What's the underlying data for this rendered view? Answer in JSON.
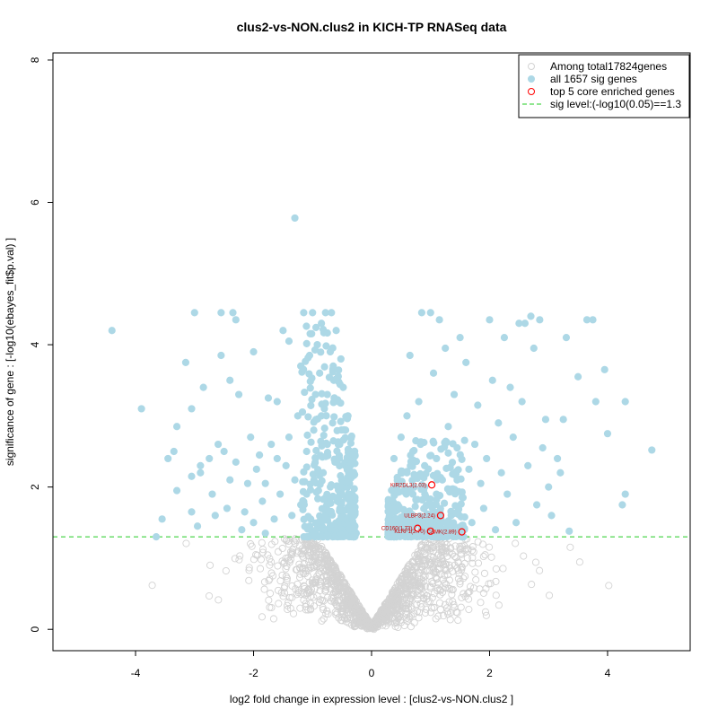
{
  "chart_data": {
    "type": "scatter",
    "title": "clus2-vs-NON.clus2 in KICH-TP RNASeq data",
    "xlabel": "log2 fold change in expression level : [clus2-vs-NON.clus2 ]",
    "ylabel": "significance of gene : [-log10(ebayes_fit$p.val) ]",
    "xlim": [
      -5.4,
      5.4
    ],
    "ylim": [
      -0.3,
      8.1
    ],
    "xticks": [
      -4,
      -2,
      0,
      2,
      4
    ],
    "yticks": [
      0,
      2,
      4,
      6,
      8
    ],
    "sig_threshold": 1.3,
    "legend_position": "top-right",
    "legend": [
      {
        "label": "Among total17824genes",
        "symbol": "open-circle",
        "color": "#d3d3d3"
      },
      {
        "label": "all 1657 sig genes",
        "symbol": "filled-circle",
        "color": "#add8e6"
      },
      {
        "label": "top 5 core enriched genes",
        "symbol": "open-circle",
        "color": "#ff0000"
      },
      {
        "label": "sig level:(-log10(0.05)==1.3",
        "symbol": "dashed-line",
        "color": "#00cc00"
      }
    ],
    "colors": {
      "nonsig": "#d3d3d3",
      "sig": "#add8e6",
      "top": "#ff0000",
      "threshold": "#22cc22"
    },
    "top_genes": [
      {
        "label": "KIR2DL3(2.03)",
        "x": 1.02,
        "y": 2.03
      },
      {
        "label": "ULBP3(2.24)",
        "x": 1.17,
        "y": 1.6
      },
      {
        "label": "CD160(1.73)",
        "x": 0.78,
        "y": 1.42
      },
      {
        "label": "KLRF1(2.70)",
        "x": 1.0,
        "y": 1.38
      },
      {
        "label": "CAMK(2.89)",
        "x": 1.53,
        "y": 1.37
      }
    ],
    "sig_points": [
      {
        "x": -4.4,
        "y": 4.2
      },
      {
        "x": -3.9,
        "y": 3.1
      },
      {
        "x": -3.65,
        "y": 1.3
      },
      {
        "x": -3.55,
        "y": 1.55
      },
      {
        "x": -3.45,
        "y": 2.4
      },
      {
        "x": -3.35,
        "y": 2.5
      },
      {
        "x": -3.3,
        "y": 2.85
      },
      {
        "x": -3.3,
        "y": 1.95
      },
      {
        "x": -3.15,
        "y": 3.75
      },
      {
        "x": -3.05,
        "y": 2.15
      },
      {
        "x": -3.05,
        "y": 1.65
      },
      {
        "x": -3.05,
        "y": 3.1
      },
      {
        "x": -3.0,
        "y": 4.45
      },
      {
        "x": -2.95,
        "y": 1.45
      },
      {
        "x": -2.9,
        "y": 2.3
      },
      {
        "x": -2.9,
        "y": 2.2
      },
      {
        "x": -2.85,
        "y": 3.4
      },
      {
        "x": -2.75,
        "y": 2.4
      },
      {
        "x": -2.7,
        "y": 1.9
      },
      {
        "x": -2.65,
        "y": 1.6
      },
      {
        "x": -2.6,
        "y": 2.6
      },
      {
        "x": -2.55,
        "y": 4.45
      },
      {
        "x": -2.55,
        "y": 3.85
      },
      {
        "x": -2.5,
        "y": 2.5
      },
      {
        "x": -2.45,
        "y": 1.7
      },
      {
        "x": -2.4,
        "y": 2.1
      },
      {
        "x": -2.4,
        "y": 3.5
      },
      {
        "x": -2.35,
        "y": 4.45
      },
      {
        "x": -2.3,
        "y": 2.35
      },
      {
        "x": -2.3,
        "y": 4.35
      },
      {
        "x": -2.25,
        "y": 3.3
      },
      {
        "x": -2.2,
        "y": 1.4
      },
      {
        "x": -2.15,
        "y": 1.65
      },
      {
        "x": -2.1,
        "y": 2.05
      },
      {
        "x": -2.05,
        "y": 2.7
      },
      {
        "x": -2.0,
        "y": 3.9
      },
      {
        "x": -2.0,
        "y": 1.5
      },
      {
        "x": -1.95,
        "y": 2.25
      },
      {
        "x": -1.9,
        "y": 2.45
      },
      {
        "x": -1.85,
        "y": 1.8
      },
      {
        "x": -1.8,
        "y": 1.35
      },
      {
        "x": -1.8,
        "y": 2.05
      },
      {
        "x": -1.75,
        "y": 3.25
      },
      {
        "x": -1.7,
        "y": 2.6
      },
      {
        "x": -1.65,
        "y": 1.55
      },
      {
        "x": -1.6,
        "y": 3.2
      },
      {
        "x": -1.55,
        "y": 1.9
      },
      {
        "x": -1.5,
        "y": 4.2
      },
      {
        "x": -1.45,
        "y": 2.3
      },
      {
        "x": -1.4,
        "y": 4.05
      },
      {
        "x": -1.35,
        "y": 1.6
      },
      {
        "x": -1.3,
        "y": 5.78
      },
      {
        "x": -1.3,
        "y": 2.1
      },
      {
        "x": -1.25,
        "y": 3.0
      },
      {
        "x": -1.2,
        "y": 1.75
      },
      {
        "x": -1.2,
        "y": 3.7
      },
      {
        "x": -1.15,
        "y": 4.45
      },
      {
        "x": -1.1,
        "y": 2.5
      },
      {
        "x": -1.05,
        "y": 3.85
      },
      {
        "x": -1.05,
        "y": 1.45
      },
      {
        "x": -1.0,
        "y": 4.45
      },
      {
        "x": -0.98,
        "y": 2.8
      },
      {
        "x": -0.95,
        "y": 3.3
      },
      {
        "x": -0.92,
        "y": 4.0
      },
      {
        "x": -0.9,
        "y": 1.95
      },
      {
        "x": -0.88,
        "y": 3.6
      },
      {
        "x": -0.85,
        "y": 4.3
      },
      {
        "x": -0.82,
        "y": 2.2
      },
      {
        "x": -0.8,
        "y": 3.1
      },
      {
        "x": -0.78,
        "y": 4.45
      },
      {
        "x": -0.75,
        "y": 2.6
      },
      {
        "x": -0.73,
        "y": 1.6
      },
      {
        "x": -0.7,
        "y": 3.9
      },
      {
        "x": -0.68,
        "y": 4.45
      },
      {
        "x": -0.66,
        "y": 2.9
      },
      {
        "x": -0.64,
        "y": 3.5
      },
      {
        "x": -0.62,
        "y": 2.35
      },
      {
        "x": -0.6,
        "y": 4.2
      },
      {
        "x": -0.58,
        "y": 1.8
      },
      {
        "x": -0.56,
        "y": 3.2
      },
      {
        "x": -0.54,
        "y": 2.6
      },
      {
        "x": -0.52,
        "y": 3.8
      },
      {
        "x": -0.5,
        "y": 2.1
      },
      {
        "x": -0.48,
        "y": 3.4
      },
      {
        "x": -0.46,
        "y": 1.5
      },
      {
        "x": -0.44,
        "y": 2.8
      },
      {
        "x": -0.42,
        "y": 2.3
      },
      {
        "x": -0.4,
        "y": 3.0
      },
      {
        "x": -0.38,
        "y": 1.7
      },
      {
        "x": -0.36,
        "y": 2.5
      },
      {
        "x": -0.34,
        "y": 1.9
      },
      {
        "x": -0.32,
        "y": 2.2
      },
      {
        "x": -0.3,
        "y": 1.45
      },
      {
        "x": -0.28,
        "y": 1.65
      },
      {
        "x": -0.26,
        "y": 1.35
      },
      {
        "x": -0.85,
        "y": 3.0
      },
      {
        "x": -0.75,
        "y": 3.3
      },
      {
        "x": -0.65,
        "y": 3.7
      },
      {
        "x": -0.55,
        "y": 2.4
      },
      {
        "x": -0.45,
        "y": 2.0
      },
      {
        "x": -0.95,
        "y": 2.4
      },
      {
        "x": -1.1,
        "y": 1.9
      },
      {
        "x": -1.4,
        "y": 2.7
      },
      {
        "x": -1.6,
        "y": 2.4
      },
      {
        "x": 4.75,
        "y": 2.52
      },
      {
        "x": 4.3,
        "y": 1.9
      },
      {
        "x": 4.3,
        "y": 3.2
      },
      {
        "x": 4.25,
        "y": 1.75
      },
      {
        "x": 4.0,
        "y": 2.75
      },
      {
        "x": 3.95,
        "y": 3.65
      },
      {
        "x": 3.8,
        "y": 3.2
      },
      {
        "x": 3.75,
        "y": 4.35
      },
      {
        "x": 3.65,
        "y": 4.35
      },
      {
        "x": 3.5,
        "y": 3.55
      },
      {
        "x": 3.35,
        "y": 1.38
      },
      {
        "x": 3.3,
        "y": 4.1
      },
      {
        "x": 3.25,
        "y": 2.95
      },
      {
        "x": 3.2,
        "y": 2.2
      },
      {
        "x": 3.15,
        "y": 2.4
      },
      {
        "x": 3.05,
        "y": 1.6
      },
      {
        "x": 3.0,
        "y": 2.0
      },
      {
        "x": 2.95,
        "y": 2.95
      },
      {
        "x": 2.9,
        "y": 2.55
      },
      {
        "x": 2.85,
        "y": 4.35
      },
      {
        "x": 2.8,
        "y": 1.75
      },
      {
        "x": 2.75,
        "y": 3.95
      },
      {
        "x": 2.7,
        "y": 4.4
      },
      {
        "x": 2.65,
        "y": 2.3
      },
      {
        "x": 2.6,
        "y": 4.3
      },
      {
        "x": 2.55,
        "y": 3.2
      },
      {
        "x": 2.5,
        "y": 4.3
      },
      {
        "x": 2.45,
        "y": 1.5
      },
      {
        "x": 2.4,
        "y": 2.7
      },
      {
        "x": 2.35,
        "y": 3.4
      },
      {
        "x": 2.3,
        "y": 1.9
      },
      {
        "x": 2.25,
        "y": 4.1
      },
      {
        "x": 2.2,
        "y": 2.2
      },
      {
        "x": 2.15,
        "y": 2.9
      },
      {
        "x": 2.1,
        "y": 1.4
      },
      {
        "x": 2.05,
        "y": 3.5
      },
      {
        "x": 2.0,
        "y": 4.35
      },
      {
        "x": 1.95,
        "y": 2.4
      },
      {
        "x": 1.9,
        "y": 1.7
      },
      {
        "x": 1.85,
        "y": 2.05
      },
      {
        "x": 1.8,
        "y": 3.15
      },
      {
        "x": 1.75,
        "y": 2.6
      },
      {
        "x": 1.7,
        "y": 1.5
      },
      {
        "x": 1.65,
        "y": 2.25
      },
      {
        "x": 1.6,
        "y": 3.75
      },
      {
        "x": 1.55,
        "y": 1.85
      },
      {
        "x": 1.5,
        "y": 4.1
      },
      {
        "x": 1.45,
        "y": 2.55
      },
      {
        "x": 1.4,
        "y": 3.3
      },
      {
        "x": 1.35,
        "y": 1.6
      },
      {
        "x": 1.3,
        "y": 2.85
      },
      {
        "x": 1.25,
        "y": 3.95
      },
      {
        "x": 1.2,
        "y": 2.1
      },
      {
        "x": 1.15,
        "y": 4.35
      },
      {
        "x": 1.1,
        "y": 2.4
      },
      {
        "x": 1.05,
        "y": 3.6
      },
      {
        "x": 1.0,
        "y": 4.45
      },
      {
        "x": 0.95,
        "y": 1.75
      },
      {
        "x": 0.9,
        "y": 2.3
      },
      {
        "x": 0.85,
        "y": 4.45
      },
      {
        "x": 0.8,
        "y": 3.2
      },
      {
        "x": 0.75,
        "y": 2.65
      },
      {
        "x": 0.7,
        "y": 1.9
      },
      {
        "x": 0.65,
        "y": 3.85
      },
      {
        "x": 0.6,
        "y": 2.2
      },
      {
        "x": 0.55,
        "y": 1.6
      },
      {
        "x": 0.5,
        "y": 2.7
      },
      {
        "x": 0.45,
        "y": 1.45
      },
      {
        "x": 0.42,
        "y": 2.0
      },
      {
        "x": 0.4,
        "y": 1.7
      },
      {
        "x": 0.38,
        "y": 2.4
      },
      {
        "x": 0.36,
        "y": 1.35
      },
      {
        "x": 0.7,
        "y": 2.5
      },
      {
        "x": 0.8,
        "y": 1.55
      },
      {
        "x": 0.9,
        "y": 2.0
      },
      {
        "x": 1.3,
        "y": 1.45
      },
      {
        "x": 0.6,
        "y": 3.0
      },
      {
        "x": 1.1,
        "y": 1.9
      },
      {
        "x": 1.45,
        "y": 2.1
      },
      {
        "x": 0.5,
        "y": 2.2
      }
    ]
  }
}
